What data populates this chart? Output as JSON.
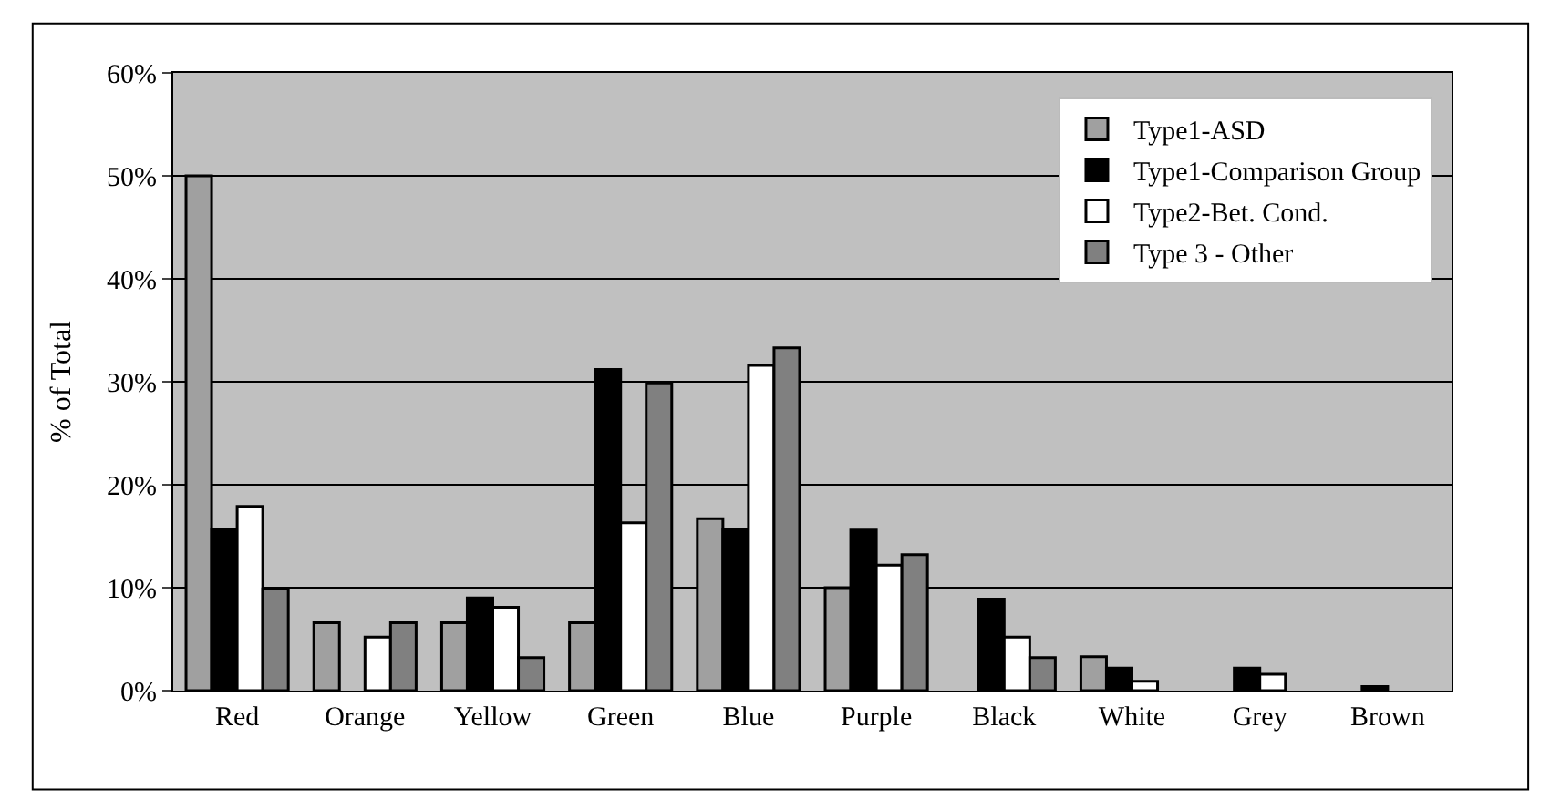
{
  "chart_data": {
    "type": "bar",
    "ylabel": "% of Total",
    "categories": [
      "Red",
      "Orange",
      "Yellow",
      "Green",
      "Blue",
      "Purple",
      "Black",
      "White",
      "Grey",
      "Brown"
    ],
    "series": [
      {
        "name": "Type1-ASD",
        "color": "#a0a0a0",
        "values": [
          50,
          6.6,
          6.6,
          6.6,
          16.7,
          10,
          0,
          3.3,
          0,
          0
        ]
      },
      {
        "name": "Type1-Comparison Group",
        "color": "#000000",
        "values": [
          15.7,
          0,
          9,
          31.2,
          15.7,
          15.6,
          8.9,
          2.2,
          2.2,
          0.4
        ]
      },
      {
        "name": "Type2-Bet. Cond.",
        "color": "#ffffff",
        "values": [
          17.9,
          5.2,
          8.1,
          16.3,
          31.6,
          12.2,
          5.2,
          0.9,
          1.6,
          0
        ]
      },
      {
        "name": "Type 3 - Other",
        "color": "#808080",
        "values": [
          9.9,
          6.6,
          3.2,
          29.9,
          33.3,
          13.2,
          3.2,
          0,
          0,
          0
        ]
      }
    ],
    "ylim": [
      0,
      60
    ],
    "yticks": [
      {
        "value": 0,
        "label": "0%"
      },
      {
        "value": 10,
        "label": "10%"
      },
      {
        "value": 20,
        "label": "20%"
      },
      {
        "value": 30,
        "label": "30%"
      },
      {
        "value": 40,
        "label": "40%"
      },
      {
        "value": 50,
        "label": "50%"
      },
      {
        "value": 60,
        "label": "60%"
      }
    ],
    "grid": "y",
    "legend": "top right"
  }
}
